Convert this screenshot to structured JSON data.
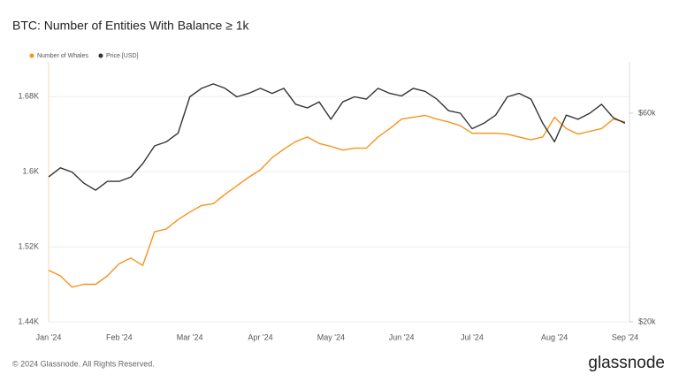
{
  "chart_data": {
    "type": "line",
    "title": "BTC: Number of Entities With Balance ≥ 1k",
    "x": [
      "Jan '24",
      null,
      null,
      null,
      null,
      null,
      "Feb '24",
      null,
      null,
      null,
      null,
      null,
      "Mar '24",
      null,
      null,
      null,
      null,
      null,
      "Apr '24",
      null,
      null,
      null,
      null,
      null,
      "May '24",
      null,
      null,
      null,
      null,
      null,
      "Jun '24",
      null,
      null,
      null,
      null,
      null,
      "Jul '24",
      null,
      null,
      null,
      null,
      null,
      null,
      "Aug '24",
      null,
      null,
      null,
      null,
      null,
      "Sep '24"
    ],
    "series": [
      {
        "name": "Number of Whales",
        "color": "#f7931a",
        "axis": "y",
        "values": [
          1495,
          1489,
          1477,
          1480,
          1480,
          1489,
          1502,
          1508,
          1500,
          1536,
          1539,
          1549,
          1557,
          1564,
          1566,
          1576,
          1585,
          1594,
          1602,
          1615,
          1624,
          1632,
          1637,
          1630,
          1627,
          1623,
          1625,
          1625,
          1637,
          1646,
          1656,
          1658,
          1660,
          1656,
          1653,
          1649,
          1641,
          1641,
          1641,
          1640,
          1637,
          1634,
          1637,
          1658,
          1646,
          1640,
          1643,
          1646,
          1656,
          1653
        ]
      },
      {
        "name": "Price [USD]",
        "color": "#333333",
        "axis": "y2",
        "values": [
          42900,
          45000,
          44000,
          41500,
          40000,
          41900,
          41900,
          42900,
          46000,
          50500,
          51600,
          54000,
          65400,
          68400,
          70000,
          68400,
          65400,
          66600,
          68400,
          66600,
          68400,
          62900,
          61700,
          63700,
          58100,
          63700,
          65400,
          64600,
          68400,
          66600,
          65700,
          68400,
          67300,
          64600,
          60800,
          60000,
          55300,
          56900,
          59400,
          65400,
          66600,
          64600,
          56900,
          51600,
          59400,
          58100,
          60000,
          62900,
          58600,
          56900
        ]
      }
    ],
    "ylim": [
      1440,
      1717
    ],
    "yticks": [
      {
        "value": 1440,
        "label": "1.44K"
      },
      {
        "value": 1520,
        "label": "1.52K"
      },
      {
        "value": 1600,
        "label": "1.6K"
      },
      {
        "value": 1680,
        "label": "1.68K"
      }
    ],
    "y2lim": [
      20000,
      78600
    ],
    "y2ticks": [
      {
        "value": 20000,
        "label": "$20k"
      },
      {
        "value": 60000,
        "label": "$60k"
      }
    ],
    "y2log": true,
    "grid": true,
    "legend": "top-left"
  },
  "footer": "© 2024 Glassnode. All Rights Reserved.",
  "logo": "glassnode"
}
